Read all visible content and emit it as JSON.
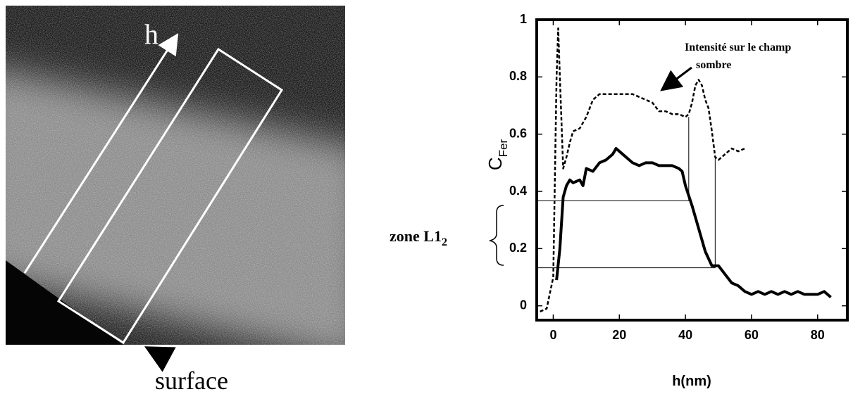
{
  "image_labels": {
    "axis_arrow": "h",
    "surface": "surface"
  },
  "chart_data": {
    "type": "line",
    "x_label": "h(nm)",
    "y_label": {
      "main": "C",
      "sub": "Fer"
    },
    "zone_label": {
      "main": "zone L1",
      "sub": "2"
    },
    "annotation": [
      "Intensité sur le champ",
      "sombre"
    ],
    "xlim": [
      -5,
      89
    ],
    "xticks": [
      0,
      20,
      40,
      60,
      80
    ],
    "ylim": [
      -0.05,
      1
    ],
    "yticks": [
      0,
      0.2,
      0.4,
      0.6,
      0.8,
      1
    ],
    "series": [
      {
        "color": "#000000",
        "dash": false,
        "width": 4,
        "x": [
          1,
          2,
          3,
          4,
          5,
          6,
          8,
          9,
          10,
          12,
          14,
          16,
          18,
          19,
          20,
          22,
          24,
          26,
          28,
          30,
          32,
          34,
          36,
          38,
          39,
          40,
          42,
          44,
          46,
          48,
          50,
          52,
          54,
          56,
          58,
          60,
          62,
          64,
          66,
          68,
          70,
          72,
          74,
          76,
          78,
          80,
          82,
          84
        ],
        "values": [
          0.09,
          0.2,
          0.38,
          0.42,
          0.44,
          0.43,
          0.44,
          0.42,
          0.48,
          0.47,
          0.5,
          0.51,
          0.53,
          0.55,
          0.54,
          0.52,
          0.5,
          0.49,
          0.5,
          0.5,
          0.49,
          0.49,
          0.49,
          0.48,
          0.47,
          0.42,
          0.35,
          0.27,
          0.19,
          0.14,
          0.14,
          0.11,
          0.08,
          0.07,
          0.05,
          0.04,
          0.05,
          0.04,
          0.05,
          0.04,
          0.05,
          0.04,
          0.05,
          0.04,
          0.04,
          0.04,
          0.05,
          0.03
        ]
      },
      {
        "color": "#000000",
        "dash": true,
        "width": 2.5,
        "x": [
          -4,
          -2,
          0,
          1,
          1.5,
          2,
          3,
          4,
          5,
          6,
          8,
          10,
          12,
          14,
          16,
          18,
          20,
          22,
          24,
          26,
          28,
          30,
          32,
          34,
          36,
          38,
          40,
          41,
          42,
          43,
          44,
          45,
          46,
          47,
          48,
          49,
          50,
          52,
          54,
          56,
          58
        ],
        "values": [
          -0.02,
          -0.01,
          0.1,
          0.8,
          0.97,
          0.8,
          0.48,
          0.52,
          0.57,
          0.61,
          0.62,
          0.66,
          0.72,
          0.74,
          0.74,
          0.74,
          0.74,
          0.74,
          0.74,
          0.73,
          0.72,
          0.71,
          0.68,
          0.68,
          0.67,
          0.67,
          0.66,
          0.67,
          0.71,
          0.77,
          0.79,
          0.77,
          0.72,
          0.69,
          0.61,
          0.52,
          0.51,
          0.53,
          0.55,
          0.54,
          0.55
        ]
      }
    ],
    "hlines": [
      {
        "y": 0.367,
        "x_end": 41
      },
      {
        "y": 0.133,
        "x_end": 49
      }
    ],
    "vlines": [
      {
        "x": 41,
        "y": [
          0.367,
          0.66
        ]
      },
      {
        "x": 49,
        "y": [
          0.133,
          0.52
        ]
      }
    ]
  }
}
